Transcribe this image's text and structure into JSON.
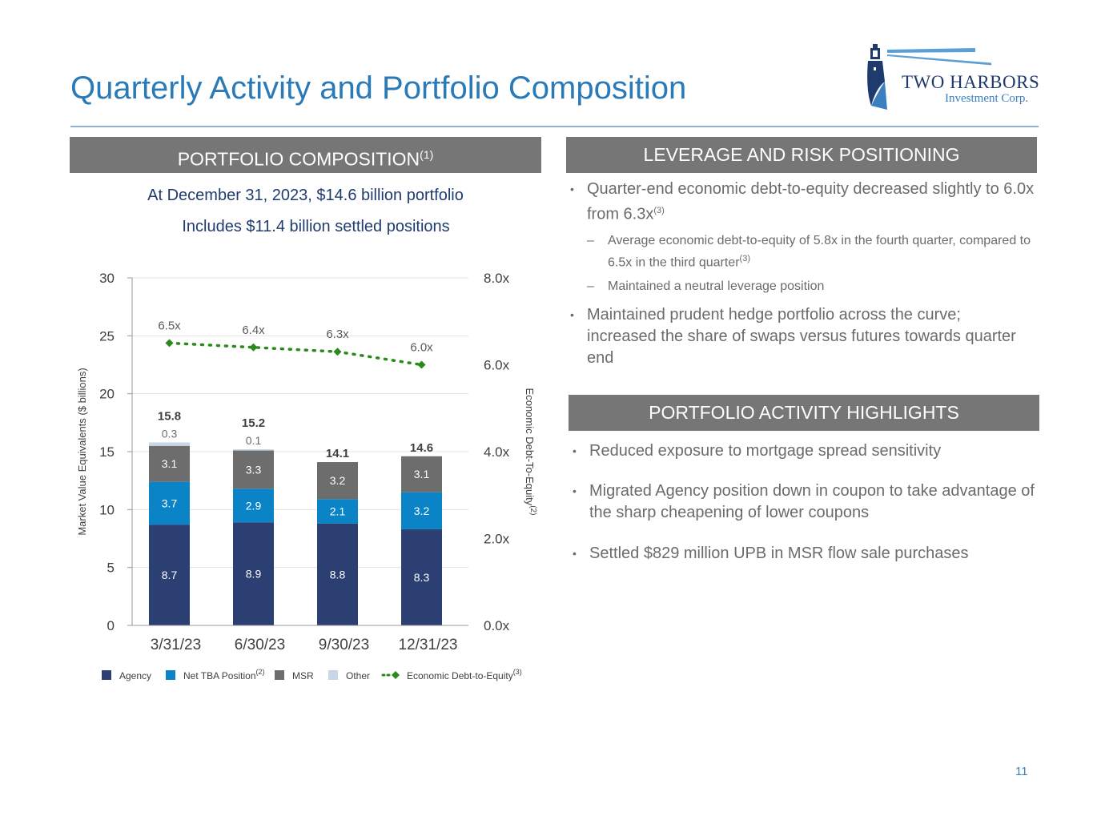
{
  "header": {
    "title": "Quarterly Activity and Portfolio Composition",
    "logo_name": "TWO HARBORS",
    "logo_tagline": "Investment Corp."
  },
  "left_panel": {
    "heading": "PORTFOLIO COMPOSITION",
    "heading_note": "(1)",
    "subtitle1": "At December 31, 2023, $14.6 billion portfolio",
    "subtitle2": "Includes $11.4 billion settled positions"
  },
  "right_panel": {
    "heading1": "LEVERAGE AND RISK POSITIONING",
    "bullets1": [
      {
        "text": "Quarter-end economic debt-to-equity decreased slightly to 6.0x from 6.3x",
        "note": "(3)"
      },
      {
        "text": "Maintained prudent hedge portfolio across the curve; increased the share of swaps versus futures towards quarter end",
        "note": ""
      }
    ],
    "subbullets1": [
      {
        "text": "Average economic debt-to-equity of 5.8x in the fourth quarter, compared to 6.5x in the third quarter",
        "note": "(3)"
      },
      {
        "text": "Maintained a neutral leverage position",
        "note": ""
      }
    ],
    "heading2": "PORTFOLIO ACTIVITY HIGHLIGHTS",
    "bullets2": [
      "Reduced exposure to mortgage spread sensitivity",
      "Migrated Agency position down in coupon to take advantage of the sharp cheapening of lower coupons",
      "Settled $829 million UPB in MSR flow sale purchases"
    ]
  },
  "chart_data": {
    "type": "bar",
    "stacked": true,
    "categories": [
      "3/31/23",
      "6/30/23",
      "9/30/23",
      "12/31/23"
    ],
    "series": [
      {
        "name": "Agency",
        "values": [
          8.7,
          8.9,
          8.8,
          8.3
        ],
        "labels": [
          "8.7",
          "8.9",
          "8.8",
          "8.3"
        ],
        "color": "#2b3f73"
      },
      {
        "name": "Net TBA Position",
        "values": [
          3.7,
          2.9,
          2.1,
          3.2
        ],
        "labels": [
          "3.7",
          "2.9",
          "2.1",
          "3.2"
        ],
        "color": "#0a84c6"
      },
      {
        "name": "MSR",
        "values": [
          3.1,
          3.3,
          3.2,
          3.1
        ],
        "labels": [
          "3.1",
          "3.3",
          "3.2",
          "3.1"
        ],
        "color": "#6d6d6d"
      },
      {
        "name": "Other",
        "values": [
          0.3,
          0.1,
          0,
          0
        ],
        "labels": [
          "0.3",
          "0.1",
          "",
          ""
        ],
        "color": "#c9d6e6"
      }
    ],
    "totals": [
      "15.8",
      "15.2",
      "14.1",
      "14.6"
    ],
    "line_series": {
      "name": "Economic Debt-to-Equity",
      "values": [
        6.5,
        6.4,
        6.3,
        6.0
      ],
      "labels": [
        "6.5x",
        "6.4x",
        "6.3x",
        "6.0x"
      ],
      "color": "#2a8a1a"
    },
    "legend_notes": {
      "Net TBA Position": "(2)",
      "Economic Debt-to-Equity": "(3)"
    },
    "ylabel": "Market Value Equivalents ($ billions)",
    "y2label": "Economic Debt-To-Equity",
    "y2label_note": "(2)",
    "ylim": [
      0,
      30
    ],
    "yticks": [
      "0",
      "5",
      "10",
      "15",
      "20",
      "25",
      "30"
    ],
    "y2lim": [
      0,
      8
    ],
    "y2ticks": [
      "0.0x",
      "2.0x",
      "4.0x",
      "6.0x",
      "8.0x"
    ],
    "grid": true,
    "legend_position": "bottom"
  },
  "footer": {
    "page_number": "11"
  }
}
